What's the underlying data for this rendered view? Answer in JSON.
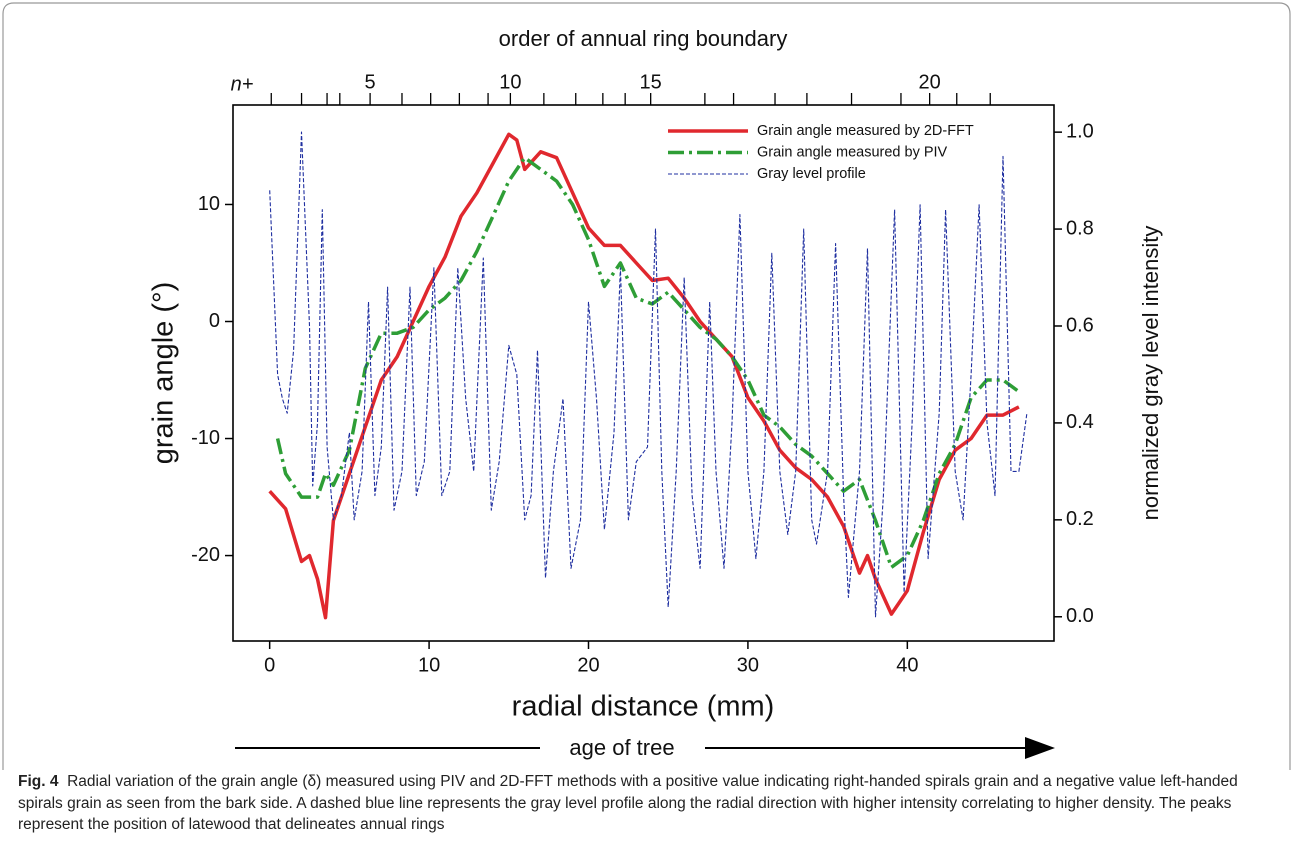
{
  "chart_data": {
    "type": "line",
    "top_axis_title": "order of annual ring boundary",
    "x2_prefix": "n+",
    "x2_boundaries": [
      0.1,
      2.0,
      3.6,
      4.4,
      6.3,
      8.3,
      10.1,
      11.9,
      13.7,
      15.1,
      17.2,
      19.2,
      20.9,
      22.3,
      23.9,
      27.3,
      29.1,
      31.7,
      33.7,
      36.5,
      39.6,
      41.4,
      43.1,
      45.2
    ],
    "x2ticks": [
      {
        "value": 6.3,
        "label": "5"
      },
      {
        "value": 15.1,
        "label": "10"
      },
      {
        "value": 23.9,
        "label": "15"
      },
      {
        "value": 41.4,
        "label": "20"
      }
    ],
    "xlabel": "radial distance (mm)",
    "ylabel": "grain angle (°)",
    "y2label": "normalized gray level intensity",
    "xlim": [
      -2.3,
      49.2
    ],
    "xticks": [
      0,
      10,
      20,
      30,
      40
    ],
    "ylim": [
      -27.3,
      18.5
    ],
    "yticks": [
      -20,
      -10,
      0,
      10
    ],
    "y2lim": [
      -0.05,
      1.056
    ],
    "y2ticks": [
      {
        "value": 0,
        "label": "0.0"
      },
      {
        "value": 0.2,
        "label": "0.2"
      },
      {
        "value": 0.4,
        "label": "0.4"
      },
      {
        "value": 0.6,
        "label": "0.6"
      },
      {
        "value": 0.8,
        "label": "0.8"
      },
      {
        "value": 1,
        "label": "1.0"
      }
    ],
    "legend": "upper right",
    "series": [
      {
        "name": "Grain angle measured by 2D-FFT",
        "color": "#e0282e",
        "style": "solid",
        "axis": "y",
        "x": [
          0,
          1,
          2,
          2.5,
          3,
          3.5,
          4,
          5,
          6,
          7,
          8,
          9,
          10,
          11,
          12,
          13,
          14,
          15,
          15.5,
          16,
          17,
          18,
          19,
          20,
          21,
          22,
          23,
          24,
          25,
          26,
          27,
          28,
          29,
          30,
          31,
          32,
          33,
          34,
          35,
          36,
          37,
          37.5,
          38,
          39,
          39.5,
          40,
          41,
          42,
          43,
          44,
          45,
          46,
          47
        ],
        "values": [
          -14.5,
          -16,
          -20.5,
          -20,
          -22,
          -25.3,
          -17,
          -13,
          -9,
          -5,
          -3,
          0,
          3,
          5.5,
          9,
          11,
          13.5,
          16,
          15.5,
          13,
          14.5,
          14,
          11,
          8,
          6.5,
          6.5,
          5,
          3.5,
          3.7,
          2,
          0,
          -1.5,
          -3,
          -6.5,
          -8.5,
          -11,
          -12.5,
          -13.5,
          -15,
          -17.5,
          -21.5,
          -20,
          -22,
          -25,
          -24,
          -23,
          -18,
          -13.5,
          -11,
          -10,
          -8,
          -8,
          -7.3
        ]
      },
      {
        "name": "Grain angle measured by PIV",
        "color": "#2e9e36",
        "style": "dashdot",
        "axis": "y",
        "x": [
          0.5,
          1,
          2,
          3,
          3.5,
          4,
          5,
          6,
          7,
          8,
          9,
          10,
          11,
          12,
          13,
          14,
          15,
          16,
          17,
          18,
          19,
          20,
          21,
          22,
          23,
          24,
          25,
          26,
          27,
          28,
          29,
          30,
          31,
          32,
          33,
          34,
          35,
          36,
          37,
          38,
          39,
          40,
          41,
          42,
          43,
          44,
          45,
          46,
          47
        ],
        "values": [
          -10,
          -13,
          -15,
          -15,
          -13,
          -14,
          -11,
          -4,
          -1,
          -1,
          -0.5,
          1,
          2,
          3.5,
          6,
          9,
          12,
          14,
          13,
          12,
          10,
          7,
          3,
          5,
          2,
          1.5,
          2.5,
          1,
          -0.5,
          -1.5,
          -3,
          -5,
          -8,
          -9,
          -10.5,
          -11.5,
          -13,
          -14.5,
          -13.5,
          -17,
          -21,
          -20,
          -17,
          -13,
          -10.5,
          -6.5,
          -5,
          -5,
          -6
        ]
      },
      {
        "name": "Gray level profile",
        "color": "#1f2fa0",
        "style": "dashed",
        "axis": "y2",
        "x": [
          0,
          0.5,
          0.8,
          1.1,
          1.5,
          2,
          2.5,
          2.7,
          3,
          3.3,
          3.6,
          4,
          4.5,
          5,
          5.3,
          5.8,
          6.2,
          6.6,
          7,
          7.4,
          7.8,
          8.3,
          8.8,
          9.2,
          9.7,
          10.3,
          10.8,
          11.3,
          11.8,
          12.3,
          12.8,
          13.4,
          13.9,
          14.4,
          15,
          15.5,
          16,
          16.4,
          16.8,
          17.3,
          17.8,
          18.4,
          18.9,
          19.5,
          20,
          20.5,
          21,
          21.6,
          22,
          22.5,
          23,
          23.7,
          24.2,
          24.6,
          25,
          25.5,
          26,
          26.5,
          27,
          27.6,
          28,
          28.5,
          29,
          29.5,
          30,
          30.5,
          31,
          31.5,
          32,
          32.5,
          33,
          33.5,
          34,
          34.3,
          35,
          35.5,
          36,
          36.3,
          37,
          37.5,
          38,
          38.5,
          39.2,
          39.8,
          40.3,
          40.8,
          41.3,
          42,
          42.4,
          43,
          43.5,
          44,
          44.5,
          45,
          45.5,
          46,
          46.5,
          47,
          47.5
        ],
        "values": [
          0.88,
          0.5,
          0.45,
          0.42,
          0.55,
          1.0,
          0.6,
          0.27,
          0.4,
          0.84,
          0.35,
          0.2,
          0.25,
          0.38,
          0.2,
          0.3,
          0.65,
          0.25,
          0.35,
          0.68,
          0.22,
          0.3,
          0.68,
          0.25,
          0.32,
          0.72,
          0.25,
          0.3,
          0.72,
          0.45,
          0.3,
          0.74,
          0.22,
          0.32,
          0.56,
          0.5,
          0.2,
          0.25,
          0.55,
          0.08,
          0.3,
          0.45,
          0.1,
          0.2,
          0.65,
          0.45,
          0.18,
          0.38,
          0.72,
          0.2,
          0.32,
          0.35,
          0.8,
          0.3,
          0.02,
          0.3,
          0.7,
          0.25,
          0.1,
          0.65,
          0.3,
          0.1,
          0.4,
          0.83,
          0.3,
          0.12,
          0.3,
          0.75,
          0.3,
          0.17,
          0.3,
          0.8,
          0.2,
          0.15,
          0.3,
          0.77,
          0.25,
          0.04,
          0.3,
          0.76,
          0.0,
          0.25,
          0.84,
          0.05,
          0.4,
          0.85,
          0.12,
          0.42,
          0.84,
          0.3,
          0.2,
          0.5,
          0.85,
          0.4,
          0.25,
          0.95,
          0.3,
          0.3,
          0.42
        ]
      }
    ]
  },
  "arrow_label": "age of tree",
  "caption": {
    "label": "Fig. 4",
    "text": "Radial variation of the grain angle (δ) measured using PIV and 2D-FFT methods with a positive value indicating right-handed spirals grain and a negative value left-handed spirals grain as seen from the bark side. A dashed blue line represents the gray level profile along the radial direction with higher intensity correlating to higher density. The peaks represent the position of latewood that delineates annual rings"
  }
}
